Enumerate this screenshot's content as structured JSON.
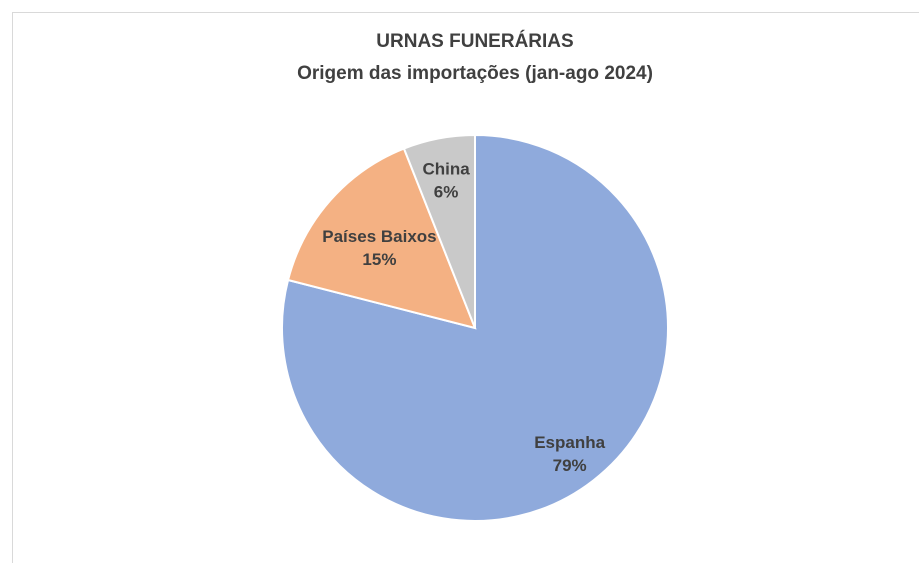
{
  "chart_data": {
    "type": "pie",
    "title": "URNAS FUNERÁRIAS",
    "subtitle": "Origem das importações (jan-ago 2024)",
    "categories": [
      "Espanha",
      "Países Baixos",
      "China"
    ],
    "values": [
      79,
      15,
      6
    ],
    "value_labels": [
      "79%",
      "15%",
      "6%"
    ],
    "colors": [
      "#8faadc",
      "#f4b183",
      "#c9c9c9"
    ]
  }
}
